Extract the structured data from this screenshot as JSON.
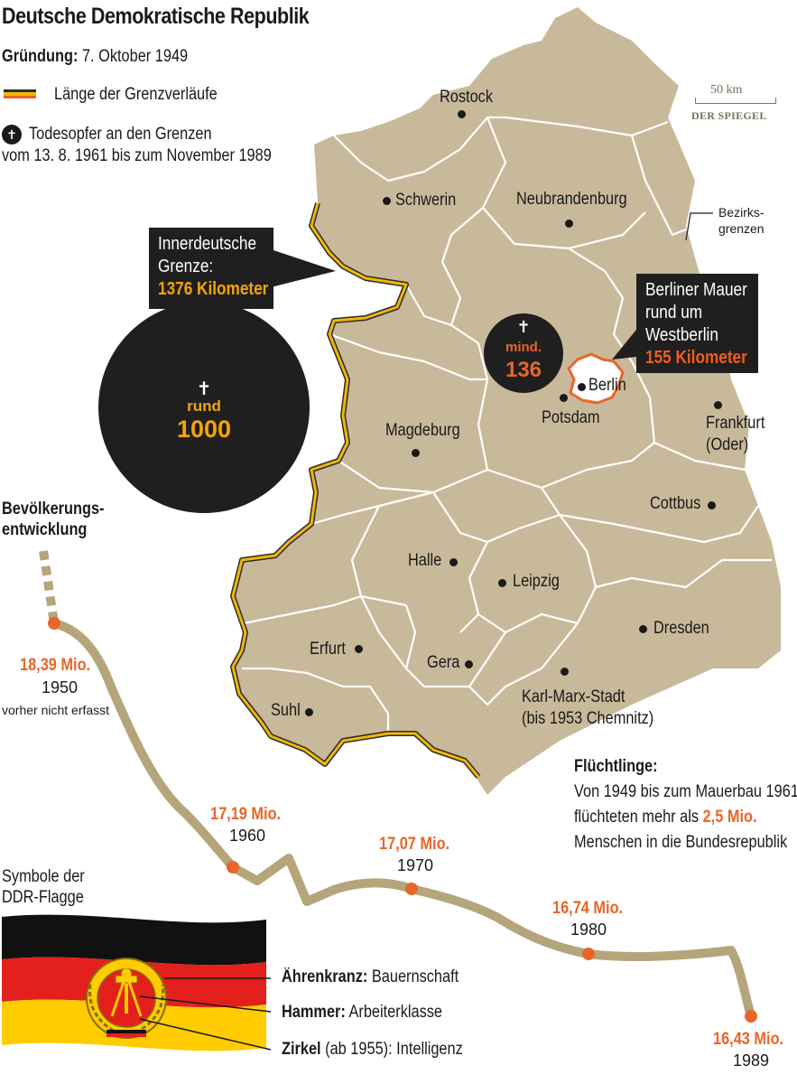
{
  "header": {
    "title": "Deutsche Demokratische Republik",
    "founding_label": "Gründung:",
    "founding_value": "7. Oktober 1949"
  },
  "legend": {
    "border_length": "Länge der Grenzverläufe",
    "deaths_line1": "Todesopfer an den Grenzen",
    "deaths_line2": "vom 13. 8. 1961 bis zum November 1989",
    "cross_symbol": "✝"
  },
  "scale": {
    "label": "50 km",
    "source": "DER SPIEGEL"
  },
  "map": {
    "colors": {
      "land": "#c8b99a",
      "border_yellow": "#f2b705",
      "border_dark": "#2b2b2b",
      "berlin_outline": "#e8662a",
      "bezirk_lines": "#ffffff"
    },
    "bezirksgrenzen_label": [
      "Bezirks-",
      "grenzen"
    ],
    "cities": [
      {
        "name": "Rostock"
      },
      {
        "name": "Schwerin"
      },
      {
        "name": "Neubrandenburg"
      },
      {
        "name": "Potsdam"
      },
      {
        "name": "Berlin"
      },
      {
        "name": "Frankfurt"
      },
      {
        "name": "(Oder)"
      },
      {
        "name": "Magdeburg"
      },
      {
        "name": "Cottbus"
      },
      {
        "name": "Halle"
      },
      {
        "name": "Leipzig"
      },
      {
        "name": "Dresden"
      },
      {
        "name": "Erfurt"
      },
      {
        "name": "Gera"
      },
      {
        "name": "Karl-Marx-Stadt"
      },
      {
        "name": "(bis 1953 Chemnitz)"
      },
      {
        "name": "Suhl"
      }
    ]
  },
  "callouts": {
    "inner_border": {
      "line1": "Innerdeutsche",
      "line2": "Grenze:",
      "value": "1376 Kilometer"
    },
    "berlin_wall": {
      "line1": "Berliner Mauer",
      "line2": "rund um",
      "line3": "Westberlin",
      "value": "155 Kilometer"
    }
  },
  "deaths": {
    "inner_border": {
      "cross": "✝",
      "label": "rund",
      "value": "1000"
    },
    "berlin": {
      "cross": "✝",
      "label": "mind.",
      "value": "136"
    }
  },
  "population": {
    "heading_line1": "Bevölkerungs-",
    "heading_line2": "entwicklung",
    "note": "vorher nicht erfasst",
    "points": [
      {
        "year": "1950",
        "value_label": "18,39 Mio.",
        "value": 18.39
      },
      {
        "year": "1960",
        "value_label": "17,19 Mio.",
        "value": 17.19
      },
      {
        "year": "1970",
        "value_label": "17,07 Mio.",
        "value": 17.07
      },
      {
        "year": "1980",
        "value_label": "16,74 Mio.",
        "value": 16.74
      },
      {
        "year": "1989",
        "value_label": "16,43 Mio.",
        "value": 16.43
      }
    ]
  },
  "refugees": {
    "heading": "Flüchtlinge:",
    "line1": "Von 1949 bis zum Mauerbau 1961",
    "line2a": "flüchteten mehr als ",
    "line2b": "2,5 Mio.",
    "line3": "Menschen in die Bundesrepublik"
  },
  "flag": {
    "heading_line1": "Symbole der",
    "heading_line2": "DDR-Flagge",
    "colors": {
      "black": "#111111",
      "red": "#e3201b",
      "gold": "#ffcc00"
    },
    "items": [
      {
        "term": "Ährenkranz:",
        "meaning": "Bauernschaft"
      },
      {
        "term": "Hammer:",
        "meaning": "Arbeiterklasse"
      },
      {
        "term": "Zirkel",
        "extra": "(ab 1955):",
        "meaning": "Intelligenz"
      }
    ]
  }
}
